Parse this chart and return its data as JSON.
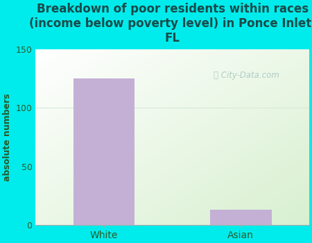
{
  "categories": [
    "White",
    "Asian"
  ],
  "values": [
    125,
    13
  ],
  "bar_color": "#c4b0d5",
  "title": "Breakdown of poor residents within races\n(income below poverty level) in Ponce Inlet,\nFL",
  "ylabel": "absolute numbers",
  "ylim": [
    0,
    150
  ],
  "yticks": [
    0,
    50,
    100,
    150
  ],
  "bg_color": "#00ecec",
  "plot_bg_color": "#edf7ea",
  "grid_color": "#e0e8e0",
  "title_color": "#1a4a4a",
  "axis_label_color": "#2a5a2a",
  "tick_color": "#2a5a2a",
  "watermark_color": "#a8c8c0",
  "title_fontsize": 12,
  "ylabel_fontsize": 9,
  "bar_width": 0.45
}
